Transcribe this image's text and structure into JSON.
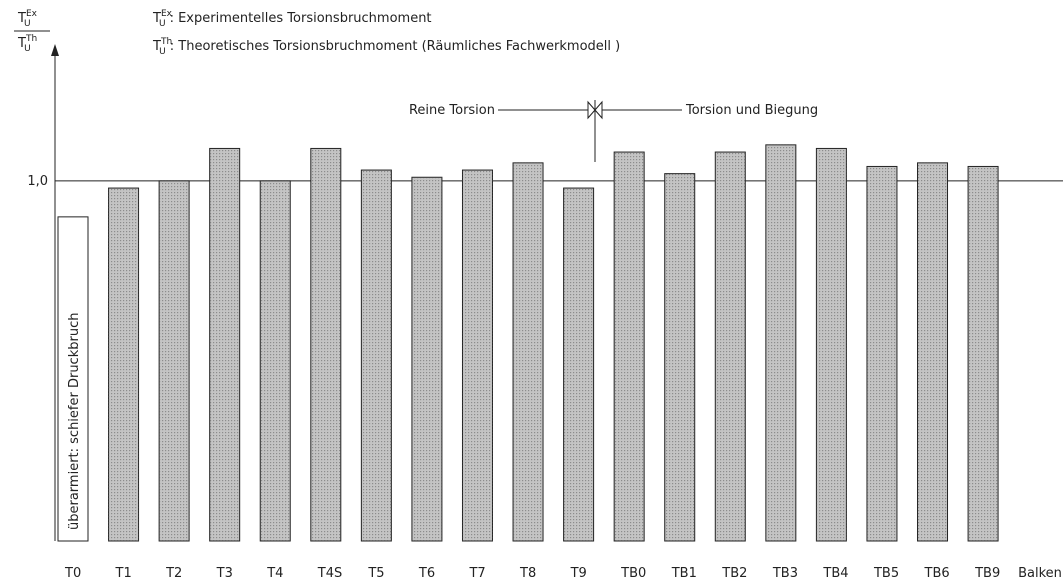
{
  "chart_data": {
    "type": "bar",
    "y_label": {
      "numerator": {
        "base": "T",
        "sub": "U",
        "sup": "Ex"
      },
      "denominator": {
        "base": "T",
        "sub": "U",
        "sup": "Th"
      }
    },
    "legend": [
      {
        "symbol": {
          "base": "T",
          "sub": "U",
          "sup": "Ex"
        },
        "text": ":  Experimentelles  Torsionsbruchmoment"
      },
      {
        "symbol": {
          "base": "T",
          "sub": "U",
          "sup": "Th"
        },
        "text": ":  Theoretisches  Torsionsbruchmoment  (Räumliches  Fachwerkmodell )"
      }
    ],
    "annotations": {
      "left_group": "Reine Torsion",
      "right_group": "Torsion und Biegung",
      "t0_note": "überarmiert: schiefer Druckbruch"
    },
    "x_label": "Balken",
    "categories": [
      "T0",
      "T1",
      "T2",
      "T3",
      "T4",
      "T4S",
      "T5",
      "T6",
      "T7",
      "T8",
      "T9",
      "TB0",
      "TB1",
      "TB2",
      "TB3",
      "TB4",
      "TB5",
      "TB6",
      "TB9"
    ],
    "values": [
      0.9,
      0.98,
      1.0,
      1.09,
      1.0,
      1.09,
      1.03,
      1.01,
      1.03,
      1.05,
      0.98,
      1.08,
      1.02,
      1.08,
      1.1,
      1.09,
      1.04,
      1.05,
      1.04
    ],
    "colors": [
      "#ffffff",
      "#c4c4c4",
      "#c4c4c4",
      "#c4c4c4",
      "#c4c4c4",
      "#c4c4c4",
      "#c4c4c4",
      "#c4c4c4",
      "#c4c4c4",
      "#c4c4c4",
      "#c4c4c4",
      "#c4c4c4",
      "#c4c4c4",
      "#c4c4c4",
      "#c4c4c4",
      "#c4c4c4",
      "#c4c4c4",
      "#c4c4c4",
      "#c4c4c4"
    ],
    "ylim": [
      0,
      1.38
    ],
    "yticks": [
      {
        "value": 1,
        "label": "1,0"
      }
    ],
    "grid": true
  }
}
